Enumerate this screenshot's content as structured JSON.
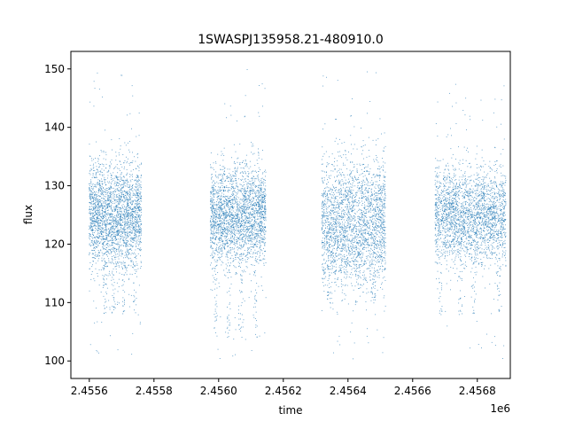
{
  "chart_data": {
    "type": "scatter",
    "title": "1SWASPJ135958.21-480910.0",
    "xlabel": "time",
    "ylabel": "flux",
    "x_offset_label": "1e6",
    "xlim": [
      2455543,
      2456902
    ],
    "ylim": [
      97,
      153
    ],
    "x_ticks": [
      2455600,
      2455800,
      2456000,
      2456200,
      2456400,
      2456600,
      2456800
    ],
    "x_tick_labels": [
      "2.4556",
      "2.4558",
      "2.4560",
      "2.4562",
      "2.4564",
      "2.4566",
      "2.4568"
    ],
    "y_ticks": [
      100,
      110,
      120,
      130,
      140,
      150
    ],
    "y_tick_labels": [
      "100",
      "110",
      "120",
      "130",
      "140",
      "150"
    ],
    "marker_color": "#1f77b4",
    "grid": false,
    "legend": "none",
    "segments": [
      {
        "x_range": [
          2455598,
          2455760
        ],
        "y_center": 125,
        "y_spread": 5,
        "y_min": 100,
        "y_max": 150,
        "dip_bands": [
          [
            2455640,
            2455655
          ],
          [
            2455668,
            2455680
          ],
          [
            2455700,
            2455712
          ],
          [
            2455735,
            2455745
          ]
        ],
        "dip_low": 108
      },
      {
        "x_range": [
          2455973,
          2456145
        ],
        "y_center": 125,
        "y_spread": 4.5,
        "y_min": 100,
        "y_max": 150,
        "dip_bands": [
          [
            2455985,
            2455995
          ],
          [
            2456025,
            2456035
          ],
          [
            2456060,
            2456075
          ],
          [
            2456108,
            2456118
          ]
        ],
        "dip_low": 104
      },
      {
        "x_range": [
          2456317,
          2456515
        ],
        "y_center": 124,
        "y_spread": 6,
        "y_min": 100,
        "y_max": 150,
        "dip_bands": [
          [
            2456335,
            2456350
          ],
          [
            2456375,
            2456395
          ],
          [
            2456420,
            2456440
          ],
          [
            2456470,
            2456485
          ]
        ],
        "dip_low": 110
      },
      {
        "x_range": [
          2456668,
          2456887
        ],
        "y_center": 125,
        "y_spread": 4.5,
        "y_min": 100,
        "y_max": 148,
        "dip_bands": [
          [
            2456680,
            2456690
          ],
          [
            2456740,
            2456752
          ],
          [
            2456780,
            2456795
          ],
          [
            2456860,
            2456870
          ]
        ],
        "dip_low": 108
      }
    ]
  }
}
